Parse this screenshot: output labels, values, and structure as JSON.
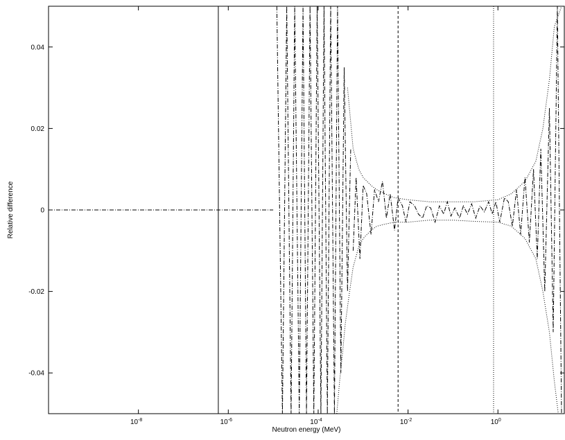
{
  "chart_data": {
    "type": "line",
    "title": "",
    "xlabel": "Neutron energy (MeV)",
    "ylabel": "Relative difference",
    "xscale": "log",
    "xlim": [
      1e-10,
      30
    ],
    "ylim": [
      -0.05,
      0.05
    ],
    "grid": false,
    "legend": "none",
    "x_ticks": [
      {
        "value": 1e-08,
        "base": "10",
        "exp": "-8"
      },
      {
        "value": 1e-06,
        "base": "10",
        "exp": "-6"
      },
      {
        "value": 0.0001,
        "base": "10",
        "exp": "-4"
      },
      {
        "value": 0.01,
        "base": "10",
        "exp": "-2"
      },
      {
        "value": 1,
        "base": "10",
        "exp": "0"
      }
    ],
    "y_ticks": [
      {
        "value": 0.04,
        "label": "0.04"
      },
      {
        "value": 0.02,
        "label": "0.02"
      },
      {
        "value": 0,
        "label": "0"
      },
      {
        "value": -0.02,
        "label": "-0.02"
      },
      {
        "value": -0.04,
        "label": "-0.04"
      }
    ],
    "vertical_lines": [
      {
        "x": 6e-07,
        "style": "solid"
      },
      {
        "x": 0.006,
        "style": "dashed"
      },
      {
        "x": 0.8,
        "style": "dotted"
      }
    ],
    "series": [
      {
        "style": "dash-dot",
        "x": [
          1e-10,
          1e-07,
          1e-06,
          1e-05
        ],
        "y": [
          0,
          0,
          0,
          0
        ]
      },
      {
        "style": "dash-dot",
        "x": [
          1.2e-05,
          1.6e-05,
          2e-05,
          2.5e-05,
          3e-05,
          3.8e-05,
          4.6e-05,
          5.5e-05,
          6.6e-05,
          8e-05,
          9.5e-05,
          0.000115,
          0.000135,
          0.00016,
          0.00019,
          0.00023,
          0.00027,
          0.00032,
          0.00038,
          0.00045,
          0.00053
        ],
        "y": [
          0.05,
          -0.05,
          0.05,
          -0.05,
          0.05,
          -0.05,
          0.05,
          -0.05,
          0.05,
          -0.05,
          0.05,
          -0.05,
          0.05,
          -0.05,
          0.05,
          -0.05,
          0.05,
          -0.04,
          0.035,
          -0.02,
          0.015
        ]
      },
      {
        "style": "dash-dot",
        "x": [
          0.0006,
          0.0007,
          0.00085,
          0.001,
          0.0012,
          0.0015,
          0.0018,
          0.0022,
          0.0027,
          0.0033,
          0.004,
          0.005,
          0.006,
          0.0075,
          0.009,
          0.011,
          0.014,
          0.017,
          0.021,
          0.026,
          0.032,
          0.04,
          0.05,
          0.062,
          0.075,
          0.09,
          0.11,
          0.14,
          0.17,
          0.21,
          0.26,
          0.32,
          0.4,
          0.5,
          0.62,
          0.75,
          0.9,
          1.1,
          1.4,
          1.7,
          2.1,
          2.6,
          3.2,
          4,
          5,
          6.2,
          7.5,
          9,
          11,
          14,
          17,
          21,
          26
        ],
        "y": [
          -0.01,
          0.008,
          -0.012,
          0.006,
          0.004,
          -0.006,
          0.005,
          0.002,
          0.007,
          -0.002,
          0.004,
          -0.005,
          0.003,
          0.001,
          -0.003,
          0.002,
          0.001,
          -0.001,
          -0.002,
          0.001,
          0.0005,
          -0.003,
          0.001,
          -0.001,
          0.002,
          -0.0015,
          0.0005,
          -0.002,
          0.001,
          -0.001,
          0.0015,
          -0.002,
          0.001,
          -0.0005,
          0.002,
          -0.001,
          0.002,
          -0.003,
          0.003,
          0.002,
          -0.004,
          0.005,
          -0.006,
          0.008,
          -0.008,
          0.01,
          -0.012,
          0.015,
          -0.02,
          0.025,
          -0.03,
          0.05,
          -0.05
        ]
      },
      {
        "style": "dotted",
        "x": [
          0.00045,
          0.0006,
          0.0008,
          0.001,
          0.0015,
          0.002,
          0.003,
          0.005,
          0.01,
          0.03,
          0.1,
          0.3,
          1,
          2,
          4,
          7,
          10,
          14,
          18,
          26
        ],
        "y": [
          0.03,
          0.015,
          0.01,
          0.008,
          0.006,
          0.005,
          0.004,
          0.003,
          0.0025,
          0.002,
          0.002,
          0.002,
          0.0025,
          0.004,
          0.007,
          0.012,
          0.02,
          0.032,
          0.045,
          0.05
        ]
      },
      {
        "style": "dotted",
        "x": [
          0.00026,
          0.0003,
          0.00035,
          0.0004,
          0.0005,
          0.0006,
          0.0008,
          0.001,
          0.0015,
          0.002,
          0.003,
          0.005,
          0.01,
          0.03,
          0.1,
          0.3,
          1,
          2,
          4,
          7,
          10,
          14,
          18,
          22
        ],
        "y": [
          -0.05,
          -0.042,
          -0.035,
          -0.028,
          -0.02,
          -0.014,
          -0.009,
          -0.007,
          -0.005,
          -0.004,
          -0.0035,
          -0.003,
          -0.003,
          -0.0025,
          -0.0025,
          -0.0028,
          -0.003,
          -0.004,
          -0.007,
          -0.012,
          -0.02,
          -0.03,
          -0.042,
          -0.05
        ]
      }
    ]
  }
}
